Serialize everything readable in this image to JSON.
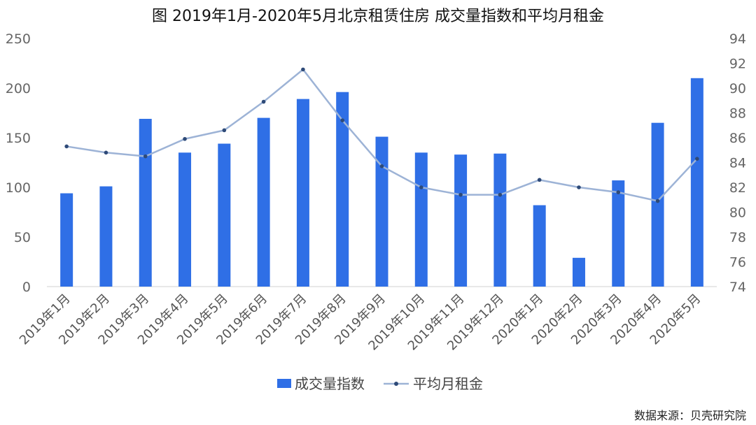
{
  "chart_data": {
    "type": "bar",
    "title": "图  2019年1月-2020年5月北京租赁住房 成交量指数和平均月租金",
    "categories": [
      "2019年1月",
      "2019年2月",
      "2019年3月",
      "2019年4月",
      "2019年5月",
      "2019年6月",
      "2019年7月",
      "2019年8月",
      "2019年9月",
      "2019年10月",
      "2019年11月",
      "2019年12月",
      "2020年1月",
      "2020年2月",
      "2020年3月",
      "2020年4月",
      "2020年5月"
    ],
    "series": [
      {
        "name": "成交量指数",
        "type": "bar",
        "axis": "left",
        "color": "#2f6fe6",
        "values": [
          94,
          101,
          169,
          135,
          144,
          170,
          189,
          196,
          151,
          135,
          133,
          134,
          82,
          29,
          107,
          165,
          210
        ]
      },
      {
        "name": "平均月租金",
        "type": "line",
        "axis": "right",
        "color": "#9db3d6",
        "marker_color": "#2e4a78",
        "values": [
          85.3,
          84.8,
          84.5,
          85.9,
          86.6,
          88.9,
          91.5,
          87.4,
          83.7,
          82.0,
          81.4,
          81.4,
          82.6,
          82.0,
          81.6,
          80.9,
          84.3
        ]
      }
    ],
    "ylim_left": [
      0,
      250
    ],
    "yticks_left": [
      "250",
      "200",
      "150",
      "100",
      "50",
      "0"
    ],
    "ylim_right": [
      74,
      94
    ],
    "yticks_right": [
      "94",
      "92",
      "90",
      "88",
      "86",
      "84",
      "82",
      "80",
      "78",
      "76",
      "74"
    ],
    "legend_position": "bottom-center",
    "grid": false,
    "source_note": "数据来源：贝壳研究院"
  }
}
